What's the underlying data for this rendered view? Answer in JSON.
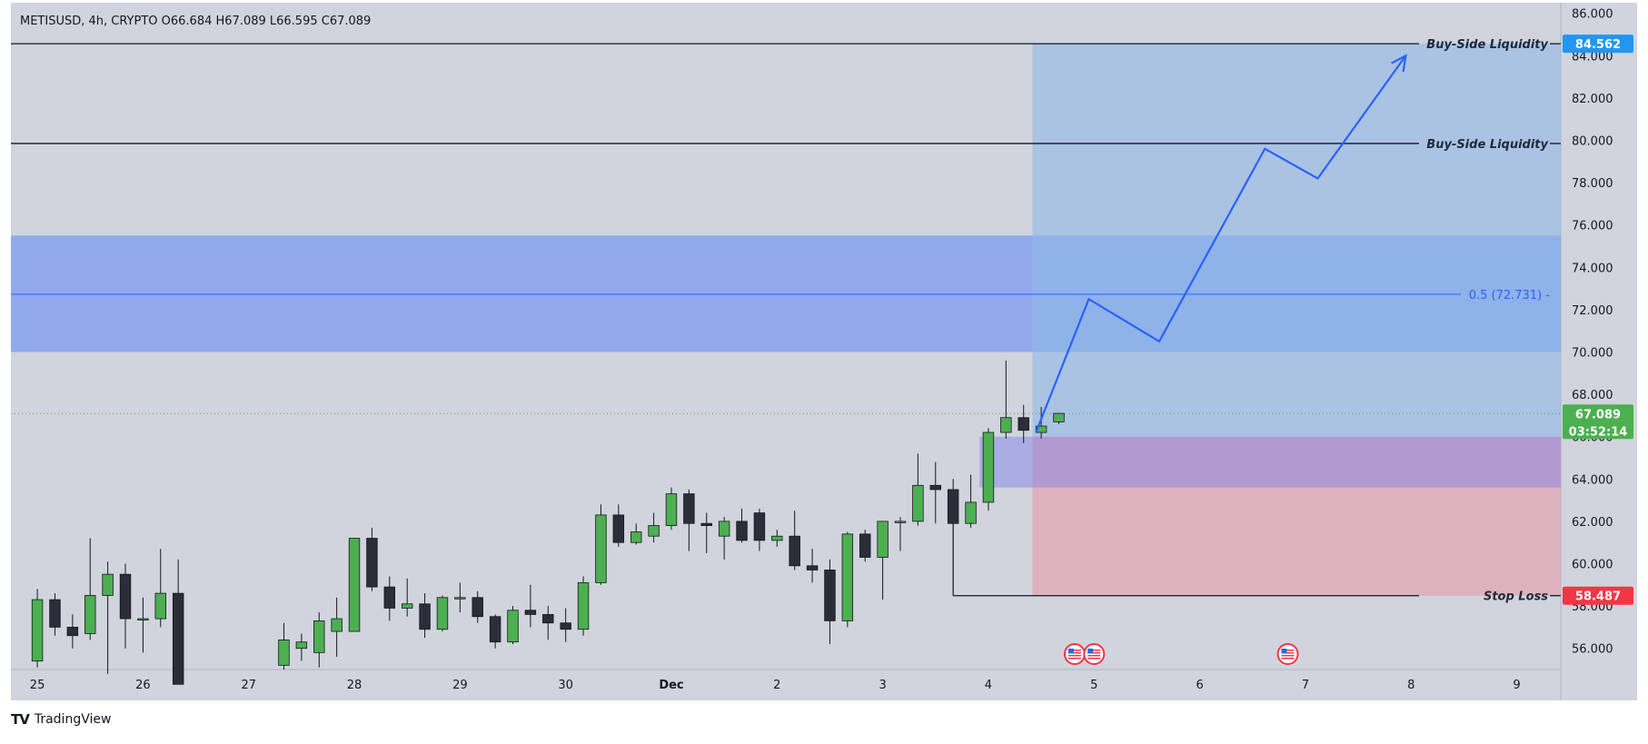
{
  "header": {
    "symbol": "METISUSD",
    "interval": "4h",
    "exchange": "CRYPTO",
    "ohlc_text": "METISUSD, 4h, CRYPTO  O66.684  H67.089  L66.595  C67.089"
  },
  "colors": {
    "background": "#d1d4dc",
    "bull": "#4caf50",
    "bear": "#2a2e39",
    "zone_blue": "#7a9cf2",
    "target_zone": "#a4c4e8",
    "stop_zone": "#e0aab8",
    "entry_zone": "#a08ccc",
    "arrow": "#2962ff",
    "price_tag": "#4caf50",
    "liquidity_tag": "#2196f3",
    "stop_tag": "#f23645"
  },
  "chart_data": {
    "type": "candlestick",
    "title": "METISUSD, 4h, CRYPTO",
    "y_axis": {
      "ticks": [
        "86.000",
        "84.000",
        "82.000",
        "80.000",
        "78.000",
        "76.000",
        "74.000",
        "72.000",
        "70.000",
        "68.000",
        "66.000",
        "64.000",
        "62.000",
        "60.000",
        "58.000",
        "56.000"
      ],
      "range": [
        55.0,
        86.5
      ]
    },
    "x_axis": {
      "labels": [
        "25",
        "26",
        "27",
        "28",
        "29",
        "30",
        "Dec",
        "2",
        "3",
        "4",
        "5",
        "6",
        "7",
        "8",
        "9"
      ],
      "label_slots": [
        0,
        6,
        12,
        18,
        24,
        30,
        36,
        42,
        48,
        54,
        60,
        66,
        72,
        78,
        84
      ],
      "slot_range": [
        -1.5,
        86.5
      ],
      "bold": [
        "Dec"
      ]
    },
    "candles": [
      {
        "slot": 0,
        "o": 55.4,
        "h": 58.8,
        "l": 55.1,
        "c": 58.3
      },
      {
        "slot": 1,
        "o": 58.3,
        "h": 58.6,
        "l": 56.6,
        "c": 57.0
      },
      {
        "slot": 2,
        "o": 57.0,
        "h": 57.6,
        "l": 56.0,
        "c": 56.6
      },
      {
        "slot": 3,
        "o": 56.7,
        "h": 61.2,
        "l": 56.4,
        "c": 58.5
      },
      {
        "slot": 4,
        "o": 58.5,
        "h": 60.1,
        "l": 54.8,
        "c": 59.5
      },
      {
        "slot": 5,
        "o": 59.5,
        "h": 60.0,
        "l": 56.0,
        "c": 57.4
      },
      {
        "slot": 6,
        "o": 57.4,
        "h": 58.4,
        "l": 55.8,
        "c": 57.4
      },
      {
        "slot": 7,
        "o": 57.4,
        "h": 60.7,
        "l": 57.0,
        "c": 58.6
      },
      {
        "slot": 8,
        "o": 58.6,
        "h": 60.2,
        "l": 54.3,
        "c": 54.3
      },
      {
        "slot": 14,
        "o": 55.2,
        "h": 57.2,
        "l": 55.0,
        "c": 56.4
      },
      {
        "slot": 15,
        "o": 56.0,
        "h": 56.7,
        "l": 55.4,
        "c": 56.3
      },
      {
        "slot": 16,
        "o": 55.8,
        "h": 57.7,
        "l": 55.1,
        "c": 57.3
      },
      {
        "slot": 17,
        "o": 56.8,
        "h": 58.4,
        "l": 55.6,
        "c": 57.4
      },
      {
        "slot": 18,
        "o": 56.8,
        "h": 61.2,
        "l": 56.8,
        "c": 61.2
      },
      {
        "slot": 19,
        "o": 61.2,
        "h": 61.7,
        "l": 58.7,
        "c": 58.9
      },
      {
        "slot": 20,
        "o": 58.9,
        "h": 59.4,
        "l": 57.3,
        "c": 57.9
      },
      {
        "slot": 21,
        "o": 57.9,
        "h": 59.3,
        "l": 57.5,
        "c": 58.1
      },
      {
        "slot": 22,
        "o": 58.1,
        "h": 58.6,
        "l": 56.5,
        "c": 56.9
      },
      {
        "slot": 23,
        "o": 56.9,
        "h": 58.5,
        "l": 56.8,
        "c": 58.4
      },
      {
        "slot": 24,
        "o": 58.4,
        "h": 59.1,
        "l": 57.7,
        "c": 58.4
      },
      {
        "slot": 25,
        "o": 58.4,
        "h": 58.7,
        "l": 57.2,
        "c": 57.5
      },
      {
        "slot": 26,
        "o": 57.5,
        "h": 57.6,
        "l": 56.0,
        "c": 56.3
      },
      {
        "slot": 27,
        "o": 56.3,
        "h": 58.0,
        "l": 56.2,
        "c": 57.8
      },
      {
        "slot": 28,
        "o": 57.8,
        "h": 59.0,
        "l": 57.0,
        "c": 57.6
      },
      {
        "slot": 29,
        "o": 57.6,
        "h": 58.0,
        "l": 56.4,
        "c": 57.2
      },
      {
        "slot": 30,
        "o": 57.2,
        "h": 57.9,
        "l": 56.3,
        "c": 56.9
      },
      {
        "slot": 31,
        "o": 56.9,
        "h": 59.4,
        "l": 56.6,
        "c": 59.1
      },
      {
        "slot": 32,
        "o": 59.1,
        "h": 62.8,
        "l": 59.0,
        "c": 62.3
      },
      {
        "slot": 33,
        "o": 62.3,
        "h": 62.8,
        "l": 60.8,
        "c": 61.0
      },
      {
        "slot": 34,
        "o": 61.0,
        "h": 61.9,
        "l": 60.9,
        "c": 61.5
      },
      {
        "slot": 35,
        "o": 61.3,
        "h": 62.4,
        "l": 61.0,
        "c": 61.8
      },
      {
        "slot": 36,
        "o": 61.8,
        "h": 63.6,
        "l": 61.6,
        "c": 63.3
      },
      {
        "slot": 37,
        "o": 63.3,
        "h": 63.5,
        "l": 60.6,
        "c": 61.9
      },
      {
        "slot": 38,
        "o": 61.9,
        "h": 62.4,
        "l": 60.5,
        "c": 61.8
      },
      {
        "slot": 39,
        "o": 61.3,
        "h": 62.2,
        "l": 60.2,
        "c": 62.0
      },
      {
        "slot": 40,
        "o": 62.0,
        "h": 62.6,
        "l": 61.0,
        "c": 61.1
      },
      {
        "slot": 41,
        "o": 62.4,
        "h": 62.6,
        "l": 60.6,
        "c": 61.1
      },
      {
        "slot": 42,
        "o": 61.1,
        "h": 61.6,
        "l": 60.8,
        "c": 61.3
      },
      {
        "slot": 43,
        "o": 61.3,
        "h": 62.5,
        "l": 59.7,
        "c": 59.9
      },
      {
        "slot": 44,
        "o": 59.9,
        "h": 60.7,
        "l": 59.1,
        "c": 59.7
      },
      {
        "slot": 45,
        "o": 59.7,
        "h": 60.2,
        "l": 56.2,
        "c": 57.3
      },
      {
        "slot": 46,
        "o": 57.3,
        "h": 61.5,
        "l": 57.0,
        "c": 61.4
      },
      {
        "slot": 47,
        "o": 61.4,
        "h": 61.6,
        "l": 60.1,
        "c": 60.3
      },
      {
        "slot": 48,
        "o": 60.3,
        "h": 62.0,
        "l": 58.3,
        "c": 62.0
      },
      {
        "slot": 49,
        "o": 62.0,
        "h": 62.2,
        "l": 60.6,
        "c": 62.0
      },
      {
        "slot": 50,
        "o": 62.0,
        "h": 65.2,
        "l": 61.8,
        "c": 63.7
      },
      {
        "slot": 51,
        "o": 63.7,
        "h": 64.8,
        "l": 61.9,
        "c": 63.5
      },
      {
        "slot": 52,
        "o": 63.5,
        "h": 64.0,
        "l": 58.5,
        "c": 61.9
      },
      {
        "slot": 53,
        "o": 61.9,
        "h": 64.2,
        "l": 61.7,
        "c": 62.9
      },
      {
        "slot": 54,
        "o": 62.9,
        "h": 66.4,
        "l": 62.5,
        "c": 66.2
      },
      {
        "slot": 55,
        "o": 66.2,
        "h": 69.6,
        "l": 65.9,
        "c": 66.9
      },
      {
        "slot": 56,
        "o": 66.9,
        "h": 67.5,
        "l": 65.7,
        "c": 66.3
      },
      {
        "slot": 57,
        "o": 66.2,
        "h": 67.4,
        "l": 65.9,
        "c": 66.5
      },
      {
        "slot": 58,
        "o": 66.7,
        "h": 67.1,
        "l": 66.6,
        "c": 67.1
      }
    ],
    "horizontal_lines": [
      {
        "name": "Buy-Side Liquidity",
        "value": 84.562,
        "label": "Buy-Side Liquidity",
        "tag": "84.562"
      },
      {
        "name": "Buy-Side Liquidity",
        "value": 79.85,
        "label": "Buy-Side Liquidity"
      },
      {
        "name": "Stop Loss",
        "value": 58.487,
        "label": "Stop Loss",
        "tag": "58.487",
        "start_slot": 52
      }
    ],
    "fib_level": {
      "label": "0.5 (72.731)",
      "value": 72.731
    },
    "zones": [
      {
        "name": "supply-demand-zone",
        "y_top": 75.5,
        "y_bottom": 70.0,
        "slot_start": -1.5,
        "slot_end": 86.5
      },
      {
        "name": "entry-zone",
        "y_top": 66.0,
        "y_bottom": 63.6,
        "slot_start": 53.5,
        "slot_end": 86.5
      }
    ],
    "position": {
      "entry": 66.0,
      "target": 84.562,
      "stop": 58.487,
      "slot_start": 56.5,
      "slot_end": 86.5
    },
    "projection_path": [
      {
        "slot": 56.7,
        "v": 66.2
      },
      {
        "slot": 59.7,
        "v": 72.5
      },
      {
        "slot": 63.7,
        "v": 70.5
      },
      {
        "slot": 69.7,
        "v": 79.6
      },
      {
        "slot": 72.7,
        "v": 78.2
      },
      {
        "slot": 77.7,
        "v": 84.0
      }
    ],
    "current_price": {
      "value": 67.089,
      "label": "67.089",
      "countdown": "03:52:14"
    },
    "event_markers": [
      {
        "slot": 58.9
      },
      {
        "slot": 60.0
      },
      {
        "slot": 71.0
      }
    ]
  },
  "footer": {
    "brand": "TradingView",
    "logo": "TV"
  }
}
